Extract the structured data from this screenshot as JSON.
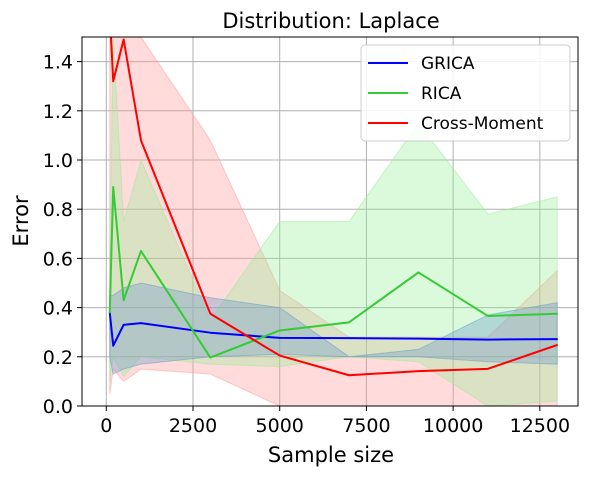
{
  "chart_data": {
    "type": "line",
    "title": "Distribution: Laplace",
    "xlabel": "Sample size",
    "ylabel": "Error",
    "xlim": [
      -700,
      13600
    ],
    "ylim": [
      0.0,
      1.5
    ],
    "xticks": [
      0,
      2500,
      5000,
      7500,
      10000,
      12500
    ],
    "xtick_labels": [
      "0",
      "2500",
      "5000",
      "7500",
      "10000",
      "12500"
    ],
    "yticks": [
      0.0,
      0.2,
      0.4,
      0.6,
      0.8,
      1.0,
      1.2,
      1.4
    ],
    "ytick_labels": [
      "0.0",
      "0.2",
      "0.4",
      "0.6",
      "0.8",
      "1.0",
      "1.2",
      "1.4"
    ],
    "grid": true,
    "legend_position": "top-right",
    "series": [
      {
        "name": "GRICA",
        "color": "#0000ff",
        "x": [
          100,
          200,
          500,
          1000,
          3000,
          5000,
          7000,
          9000,
          11000,
          13000
        ],
        "y": [
          0.38,
          0.245,
          0.33,
          0.337,
          0.298,
          0.277,
          0.276,
          0.274,
          0.27,
          0.272
        ],
        "band_low": [
          0.2,
          0.13,
          0.15,
          0.17,
          0.2,
          0.21,
          0.2,
          0.2,
          0.18,
          0.17
        ],
        "band_high": [
          0.45,
          0.45,
          0.48,
          0.5,
          0.44,
          0.4,
          0.2,
          0.23,
          0.37,
          0.42
        ],
        "band_color": "#6699cc"
      },
      {
        "name": "RICA",
        "color": "#33cc33",
        "x": [
          100,
          200,
          500,
          1000,
          3000,
          5000,
          7000,
          9000,
          11000,
          13000
        ],
        "y": [
          0.38,
          0.89,
          0.43,
          0.63,
          0.197,
          0.307,
          0.34,
          0.543,
          0.366,
          0.375
        ],
        "band_low": [
          0.1,
          0.2,
          0.12,
          0.2,
          0.17,
          0.16,
          0.2,
          0.18,
          0.0,
          0.02
        ],
        "band_high": [
          0.6,
          1.5,
          0.75,
          1.0,
          0.35,
          0.75,
          0.75,
          1.15,
          0.78,
          0.85
        ],
        "band_color": "#99ee99"
      },
      {
        "name": "Cross-Moment",
        "color": "#ff0000",
        "x": [
          100,
          200,
          500,
          1000,
          3000,
          5000,
          7000,
          9000,
          11000,
          13000
        ],
        "y": [
          1.6,
          1.32,
          1.49,
          1.08,
          0.375,
          0.205,
          0.125,
          0.142,
          0.151,
          0.248
        ],
        "band_low": [
          0.05,
          0.15,
          0.1,
          0.15,
          0.13,
          0.0,
          0.0,
          0.0,
          0.0,
          0.0
        ],
        "band_high": [
          1.5,
          1.5,
          1.5,
          1.5,
          1.08,
          0.47,
          0.28,
          0.28,
          0.28,
          0.55
        ],
        "band_color": "#ff9999"
      }
    ]
  }
}
